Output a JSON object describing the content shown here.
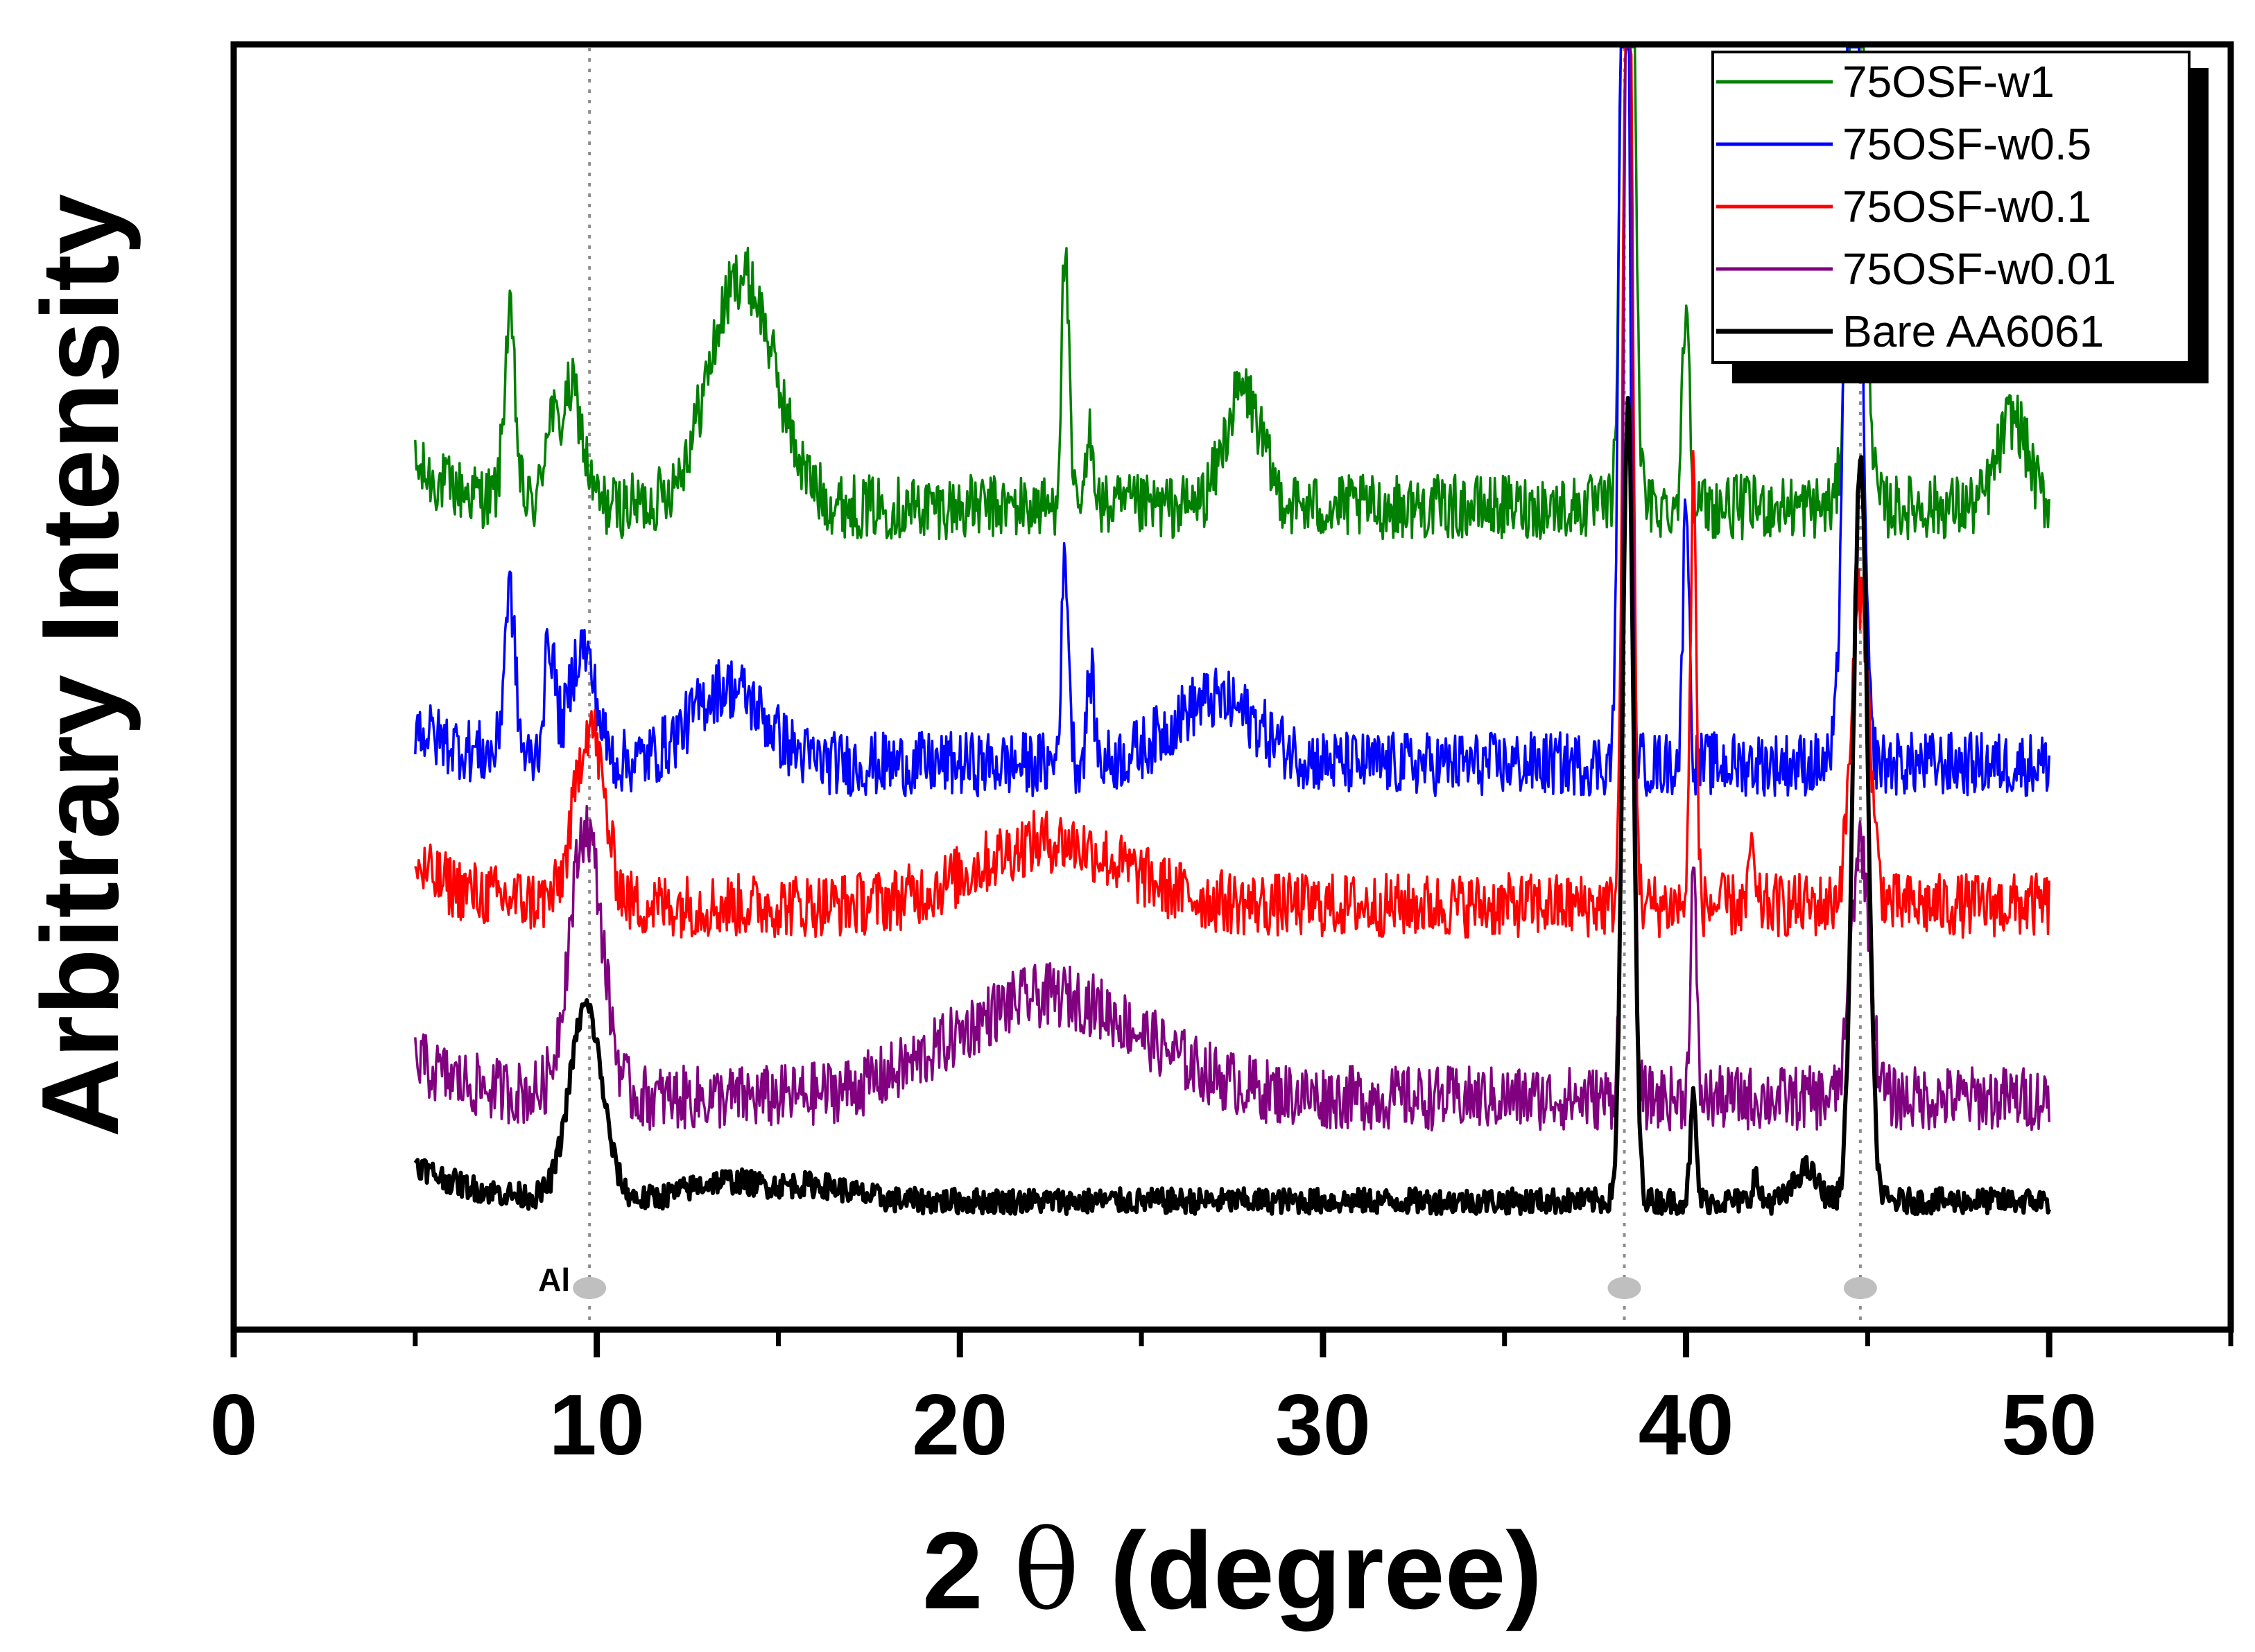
{
  "chart_data": {
    "type": "line",
    "title": "",
    "xlabel": "2 θ (degree)",
    "xlabel_number": "2",
    "xlabel_symbol": "θ",
    "xlabel_unit": "(degree)",
    "ylabel": "Arbitrary Intensity",
    "xlim": [
      0,
      55
    ],
    "xticks": [
      0,
      10,
      20,
      30,
      40,
      50
    ],
    "x_range_measured": [
      5,
      50
    ],
    "yticks_shown": false,
    "legend_position": "top-right",
    "series": [
      {
        "name": "75OSF-w1",
        "color": "#008000",
        "baseline": 0.64,
        "noise": 0.025,
        "peaks": [
          {
            "x": 7.6,
            "height": 0.14,
            "width": 0.15
          },
          {
            "x": 8.7,
            "height": 0.06,
            "width": 0.15
          },
          {
            "x": 9.3,
            "height": 0.09,
            "width": 0.3
          },
          {
            "x": 14.0,
            "height": 0.18,
            "width": 0.9
          },
          {
            "x": 22.9,
            "height": 0.2,
            "width": 0.1
          },
          {
            "x": 23.6,
            "height": 0.06,
            "width": 0.1
          },
          {
            "x": 27.8,
            "height": 0.09,
            "width": 0.5
          },
          {
            "x": 38.4,
            "height": 0.85,
            "width": 0.15
          },
          {
            "x": 40.0,
            "height": 0.16,
            "width": 0.1
          },
          {
            "x": 44.7,
            "height": 0.6,
            "width": 0.2
          },
          {
            "x": 49.0,
            "height": 0.07,
            "width": 0.4
          }
        ]
      },
      {
        "name": "75OSF-w0.5",
        "color": "#0000ff",
        "baseline": 0.44,
        "noise": 0.025,
        "peaks": [
          {
            "x": 7.6,
            "height": 0.13,
            "width": 0.15
          },
          {
            "x": 8.7,
            "height": 0.09,
            "width": 0.15
          },
          {
            "x": 9.6,
            "height": 0.09,
            "width": 0.35
          },
          {
            "x": 13.6,
            "height": 0.06,
            "width": 1.0
          },
          {
            "x": 22.9,
            "height": 0.16,
            "width": 0.1
          },
          {
            "x": 23.6,
            "height": 0.07,
            "width": 0.1
          },
          {
            "x": 27.0,
            "height": 0.05,
            "width": 1.2
          },
          {
            "x": 38.3,
            "height": 0.95,
            "width": 0.12
          },
          {
            "x": 40.0,
            "height": 0.22,
            "width": 0.08
          },
          {
            "x": 44.6,
            "height": 0.8,
            "width": 0.2
          }
        ]
      },
      {
        "name": "75OSF-w0.1",
        "color": "#ff0000",
        "baseline": 0.33,
        "noise": 0.025,
        "peaks": [
          {
            "x": 9.8,
            "height": 0.14,
            "width": 0.4
          },
          {
            "x": 22.5,
            "height": 0.05,
            "width": 2.0
          },
          {
            "x": 38.4,
            "height": 0.9,
            "width": 0.12
          },
          {
            "x": 40.2,
            "height": 0.34,
            "width": 0.08
          },
          {
            "x": 41.8,
            "height": 0.06,
            "width": 0.05
          },
          {
            "x": 44.8,
            "height": 0.24,
            "width": 0.25
          }
        ]
      },
      {
        "name": "75OSF-w0.01",
        "color": "#800080",
        "baseline": 0.18,
        "noise": 0.025,
        "peaks": [
          {
            "x": 9.7,
            "height": 0.21,
            "width": 0.45
          },
          {
            "x": 22.5,
            "height": 0.08,
            "width": 2.6
          },
          {
            "x": 38.4,
            "height": 0.95,
            "width": 0.12
          },
          {
            "x": 40.2,
            "height": 0.18,
            "width": 0.08
          },
          {
            "x": 44.8,
            "height": 0.2,
            "width": 0.25
          }
        ]
      },
      {
        "name": "Bare AA6061",
        "color": "#000000",
        "baseline": 0.1,
        "noise": 0.01,
        "peaks": [
          {
            "x": 9.7,
            "height": 0.15,
            "width": 0.45
          },
          {
            "x": 13.5,
            "height": 0.015,
            "width": 1.0
          },
          {
            "x": 16.0,
            "height": 0.012,
            "width": 1.0
          },
          {
            "x": 38.4,
            "height": 0.62,
            "width": 0.15
          },
          {
            "x": 40.2,
            "height": 0.08,
            "width": 0.08
          },
          {
            "x": 41.9,
            "height": 0.02,
            "width": 0.08
          },
          {
            "x": 43.3,
            "height": 0.025,
            "width": 0.3
          },
          {
            "x": 44.8,
            "height": 0.58,
            "width": 0.2
          }
        ]
      }
    ],
    "reference_lines": [
      9.8,
      38.3,
      44.8
    ],
    "annotations": [
      {
        "text": "Al",
        "x": 9.8
      }
    ]
  }
}
